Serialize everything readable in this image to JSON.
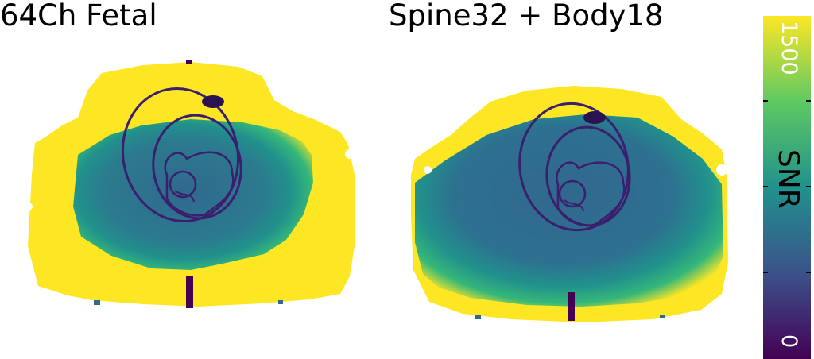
{
  "panels": [
    {
      "title": "64Ch Fetal"
    },
    {
      "title": "Spine32 + Body18"
    }
  ],
  "colorbar": {
    "label": "SNR",
    "max_label": "1500",
    "min_label": "0",
    "colormap": "viridis",
    "colors": {
      "low": "#440154",
      "mid": "#31688e",
      "teal": "#21918c",
      "green": "#35b779",
      "high": "#fde725"
    }
  }
}
